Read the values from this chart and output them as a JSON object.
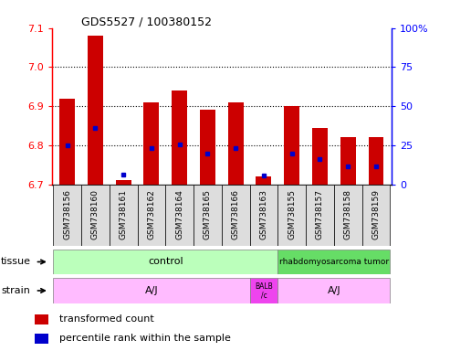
{
  "title": "GDS5527 / 100380152",
  "samples": [
    "GSM738156",
    "GSM738160",
    "GSM738161",
    "GSM738162",
    "GSM738164",
    "GSM738165",
    "GSM738166",
    "GSM738163",
    "GSM738155",
    "GSM738157",
    "GSM738158",
    "GSM738159"
  ],
  "red_values": [
    6.92,
    7.08,
    6.71,
    6.91,
    6.94,
    6.89,
    6.91,
    6.72,
    6.9,
    6.845,
    6.82,
    6.82
  ],
  "blue_values": [
    6.8,
    6.845,
    6.725,
    6.793,
    6.803,
    6.778,
    6.793,
    6.722,
    6.778,
    6.765,
    6.745,
    6.745
  ],
  "y_min": 6.7,
  "y_max": 7.1,
  "y_ticks": [
    6.7,
    6.8,
    6.9,
    7.0,
    7.1
  ],
  "y2_ticks": [
    0,
    25,
    50,
    75,
    100
  ],
  "bar_color": "#cc0000",
  "blue_color": "#0000cc",
  "bar_bottom": 6.7,
  "tissue_control_color": "#bbffbb",
  "tissue_tumor_color": "#66dd66",
  "strain_aj_color": "#ffbbff",
  "strain_balb_color": "#ee44ee",
  "legend_red": "transformed count",
  "legend_blue": "percentile rank within the sample",
  "tissue_row_label": "tissue",
  "strain_row_label": "strain",
  "bar_width": 0.55,
  "xtick_bg_color": "#dddddd",
  "n_samples": 12
}
